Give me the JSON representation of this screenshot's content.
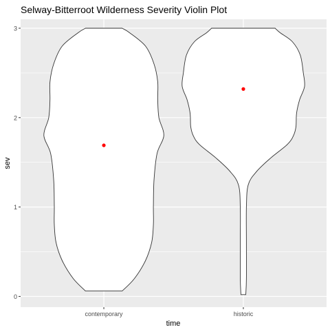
{
  "chart_data": {
    "type": "violin",
    "title": "Selway-Bitterroot Wilderness Severity Violin Plot",
    "xlabel": "time",
    "ylabel": "sev",
    "categories": [
      "contemporary",
      "historic"
    ],
    "ylim": [
      -0.12,
      3.1
    ],
    "yticks": [
      0,
      1,
      2,
      3
    ],
    "grid": true,
    "point_color": "#ff0000",
    "panel_background": "#ebebeb",
    "grid_color": "#ffffff",
    "violins": [
      {
        "category": "contemporary",
        "mean": 1.69,
        "min": 0.06,
        "max": 3.0,
        "density_profile": [
          {
            "y": 0.06,
            "w": 0.3
          },
          {
            "y": 0.2,
            "w": 0.5
          },
          {
            "y": 0.4,
            "w": 0.68
          },
          {
            "y": 0.6,
            "w": 0.78
          },
          {
            "y": 0.8,
            "w": 0.81
          },
          {
            "y": 1.0,
            "w": 0.81
          },
          {
            "y": 1.3,
            "w": 0.82
          },
          {
            "y": 1.6,
            "w": 0.87
          },
          {
            "y": 1.8,
            "w": 0.98
          },
          {
            "y": 2.0,
            "w": 0.9
          },
          {
            "y": 2.2,
            "w": 0.88
          },
          {
            "y": 2.4,
            "w": 0.88
          },
          {
            "y": 2.6,
            "w": 0.82
          },
          {
            "y": 2.8,
            "w": 0.68
          },
          {
            "y": 2.95,
            "w": 0.42
          },
          {
            "y": 3.0,
            "w": 0.3
          }
        ]
      },
      {
        "category": "historic",
        "mean": 2.32,
        "min": 0.02,
        "max": 3.0,
        "density_profile": [
          {
            "y": 0.02,
            "w": 0.04
          },
          {
            "y": 0.2,
            "w": 0.05
          },
          {
            "y": 0.6,
            "w": 0.05
          },
          {
            "y": 1.0,
            "w": 0.05
          },
          {
            "y": 1.25,
            "w": 0.08
          },
          {
            "y": 1.4,
            "w": 0.22
          },
          {
            "y": 1.55,
            "w": 0.45
          },
          {
            "y": 1.7,
            "w": 0.72
          },
          {
            "y": 1.8,
            "w": 0.82
          },
          {
            "y": 1.9,
            "w": 0.86
          },
          {
            "y": 2.05,
            "w": 0.87
          },
          {
            "y": 2.2,
            "w": 0.92
          },
          {
            "y": 2.35,
            "w": 1.0
          },
          {
            "y": 2.5,
            "w": 0.98
          },
          {
            "y": 2.7,
            "w": 0.93
          },
          {
            "y": 2.85,
            "w": 0.8
          },
          {
            "y": 2.95,
            "w": 0.6
          },
          {
            "y": 3.0,
            "w": 0.52
          }
        ]
      }
    ]
  }
}
